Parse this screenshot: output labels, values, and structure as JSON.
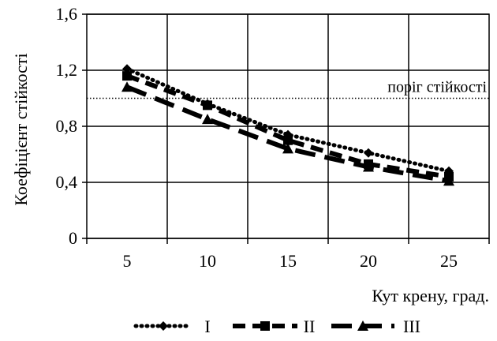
{
  "chart_data": {
    "type": "line",
    "xlabel": "Кут крену, град.",
    "ylabel": "Коефіцієнт стійкості",
    "x": [
      5,
      10,
      15,
      20,
      25
    ],
    "x_tick_labels": [
      "5",
      "10",
      "15",
      "20",
      "25"
    ],
    "xlim": [
      2.5,
      27.5
    ],
    "ylim": [
      0,
      1.6
    ],
    "y_ticks": [
      0,
      0.4,
      0.8,
      1.2,
      1.6
    ],
    "y_tick_labels": [
      "0",
      "0,4",
      "0,8",
      "1,2",
      "1,6"
    ],
    "grid": true,
    "legend_position": "bottom",
    "series": [
      {
        "name": "I",
        "values": [
          1.21,
          0.96,
          0.74,
          0.61,
          0.48
        ],
        "line_style": "dotted",
        "marker": "diamond"
      },
      {
        "name": "II",
        "values": [
          1.16,
          0.95,
          0.7,
          0.53,
          0.44
        ],
        "line_style": "dashed",
        "marker": "square"
      },
      {
        "name": "III",
        "values": [
          1.08,
          0.85,
          0.64,
          0.51,
          0.41
        ],
        "line_style": "long-dashed",
        "marker": "triangle"
      }
    ],
    "threshold": {
      "label": "поріг стійкості",
      "value": 1.0,
      "line_style": "dotted"
    }
  }
}
